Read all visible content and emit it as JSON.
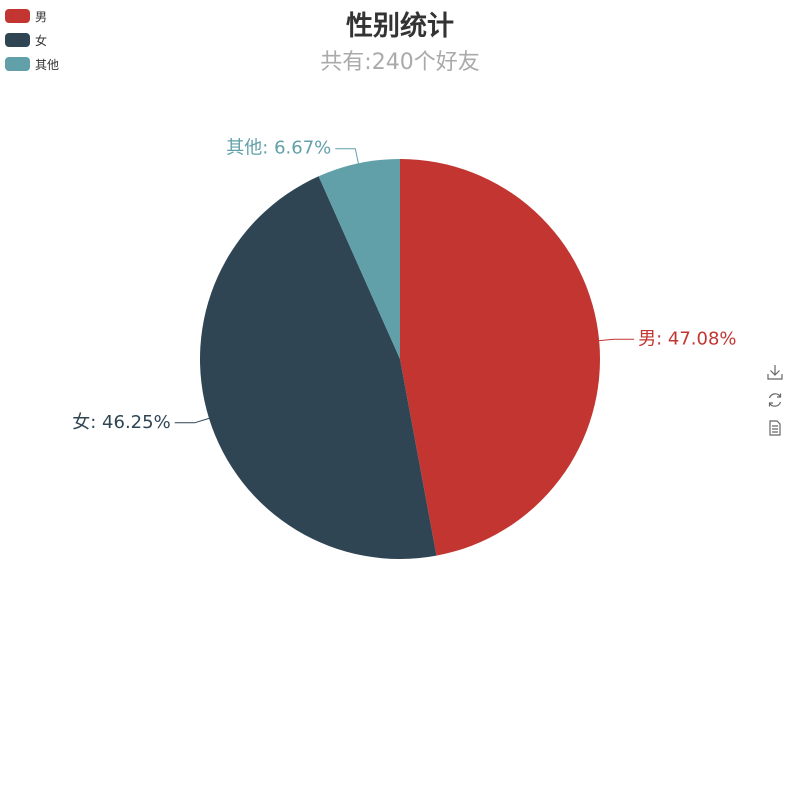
{
  "title": "性别统计",
  "subtitle": "共有:240个好友",
  "legend": {
    "items": [
      {
        "label": "男",
        "color": "#c23531"
      },
      {
        "label": "女",
        "color": "#2f4554"
      },
      {
        "label": "其他",
        "color": "#61a0a8"
      }
    ]
  },
  "toolbox": {
    "icons": [
      "download-icon",
      "refresh-icon",
      "data-view-icon"
    ]
  },
  "chart_data": {
    "type": "pie",
    "title": "性别统计",
    "subtitle": "共有:240个好友",
    "categories": [
      "男",
      "女",
      "其他"
    ],
    "values": [
      47.08,
      46.25,
      6.67
    ],
    "labels": [
      "男: 47.08%",
      "女: 46.25%",
      "其他: 6.67%"
    ],
    "colors": [
      "#c23531",
      "#2f4554",
      "#61a0a8"
    ],
    "legend_position": "top-left"
  }
}
